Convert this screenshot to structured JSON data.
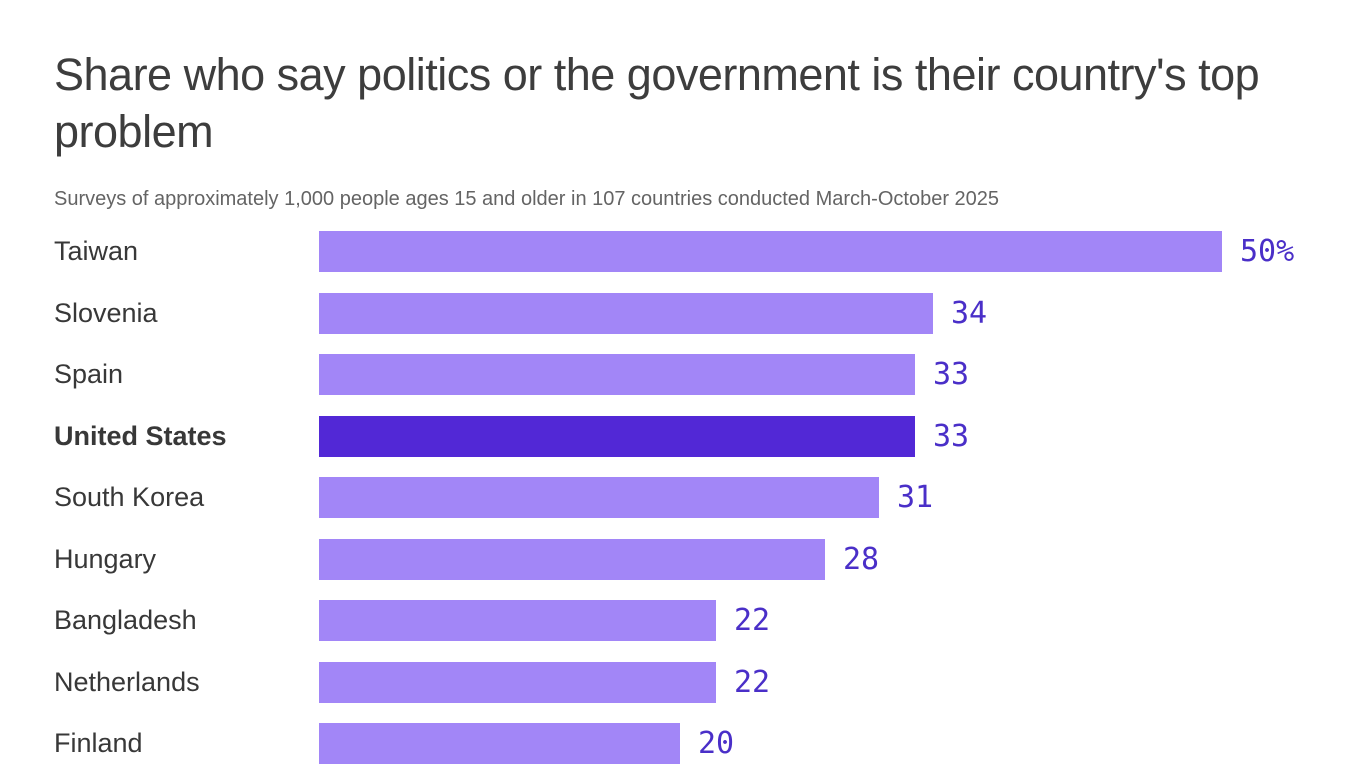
{
  "header": {
    "title": "Share who say politics or the government is their country's top problem",
    "subtitle": "Surveys of approximately 1,000 people ages 15 and older in 107 countries conducted March-October 2025"
  },
  "chart_data": {
    "type": "bar",
    "orientation": "horizontal",
    "title": "Share who say politics or the government is their country's top problem",
    "subtitle": "Surveys of approximately 1,000 people ages 15 and older in 107 countries conducted March-October 2025",
    "xlabel": "",
    "ylabel": "",
    "xlim": [
      0,
      50
    ],
    "grid": false,
    "legend": "none",
    "unit": "%",
    "categories": [
      "Taiwan",
      "Slovenia",
      "Spain",
      "United States",
      "South Korea",
      "Hungary",
      "Bangladesh",
      "Netherlands",
      "Finland"
    ],
    "values": [
      50,
      34,
      33,
      33,
      31,
      28,
      22,
      22,
      20
    ],
    "value_labels": [
      "50%",
      "34",
      "33",
      "33",
      "31",
      "28",
      "22",
      "22",
      "20"
    ],
    "highlighted_category": "United States",
    "colors": {
      "bar": "#a286f7",
      "bar_highlight": "#5228d6",
      "value_text": "#4a2fc8",
      "label_text": "#383838",
      "title_text": "#3d3d3d",
      "subtitle_text": "#646464"
    }
  }
}
